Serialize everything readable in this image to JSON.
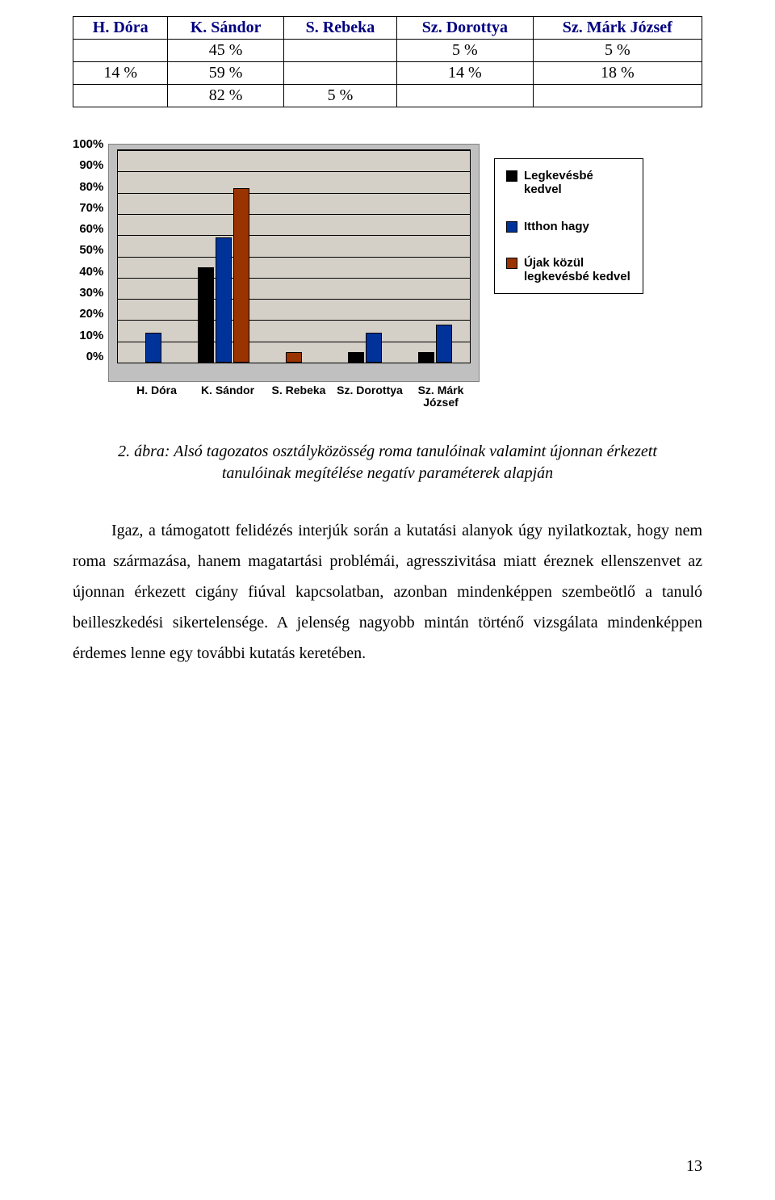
{
  "table": {
    "headers": [
      "H. Dóra",
      "K. Sándor",
      "S. Rebeka",
      "Sz. Dorottya",
      "Sz. Márk József"
    ],
    "rows": [
      [
        "",
        "45 %",
        "",
        "5 %",
        "5 %"
      ],
      [
        "14 %",
        "59 %",
        "",
        "14 %",
        "18 %"
      ],
      [
        "",
        "82 %",
        "5 %",
        "",
        ""
      ]
    ]
  },
  "chart": {
    "y_ticks": [
      "100%",
      "90%",
      "80%",
      "70%",
      "60%",
      "50%",
      "40%",
      "30%",
      "20%",
      "10%",
      "0%"
    ],
    "y_max": 100,
    "categories": [
      "H. Dóra",
      "K. Sándor",
      "S. Rebeka",
      "Sz. Dorottya",
      "Sz. Márk József"
    ],
    "x_labels_display": [
      "H. Dóra",
      "K. Sándor",
      "S. Rebeka",
      "Sz. Dorottya",
      "Sz. Márk\nJózsef"
    ],
    "series": [
      {
        "name": "Legkevésbé kedvel",
        "color": "#000000",
        "values": [
          null,
          45,
          null,
          5,
          5
        ]
      },
      {
        "name": "Itthon hagy",
        "color": "#003399",
        "values": [
          14,
          59,
          null,
          14,
          18
        ]
      },
      {
        "name": "Újak közül legkevésbé kedvel",
        "color": "#993300",
        "values": [
          null,
          82,
          5,
          null,
          null
        ]
      }
    ],
    "legend": [
      {
        "label": "Legkevésbé kedvel",
        "color": "#000000"
      },
      {
        "label": "Itthon hagy",
        "color": "#003399"
      },
      {
        "label": "Újak közül legkevésbé kedvel",
        "color": "#993300"
      }
    ],
    "plot_bg": "#d4d0c8",
    "outer_bg": "#c0c0c0",
    "grid_color": "#000000"
  },
  "caption": "2. ábra: Alsó tagozatos osztályközösség roma tanulóinak valamint újonnan érkezett tanulóinak megítélése negatív paraméterek alapján",
  "body": "Igaz, a támogatott felidézés interjúk során a kutatási alanyok úgy nyilatkoztak, hogy nem roma származása, hanem magatartási problémái, agresszivitása miatt éreznek ellenszenvet az újonnan érkezett cigány fiúval kapcsolatban, azonban mindenképpen szembeötlő a tanuló beilleszkedési sikertelensége. A jelenség nagyobb mintán történő vizsgálata mindenképpen érdemes lenne egy további kutatás keretében.",
  "page_number": "13"
}
